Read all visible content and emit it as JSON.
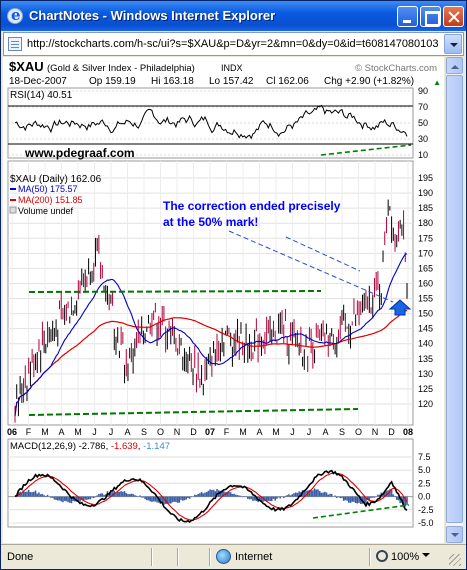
{
  "window": {
    "title": "ChartNotes - Windows Internet Explorer",
    "url": "http://stockcharts.com/h-sc/ui?s=$XAU&p=D&yr=2&mn=0&dy=0&id=t608147080103"
  },
  "chart": {
    "symbol": "$XAU",
    "name": "(Gold & Silver Index - Philadelphia)",
    "exchange": "INDX",
    "copyright": "© StockCharts.com",
    "quote": {
      "date": "18-Dec-2007",
      "op": "Op 159.19",
      "hi": "Hi 163.18",
      "lo": "Lo 157.42",
      "cl": "Cl 162.06",
      "chg": "Chg +2.90 (+1.82%)",
      "chg_arrow": "▲"
    },
    "watermark": "www.pdegraaf.com",
    "rsi": {
      "label": "RSI(14)",
      "value": "40.51",
      "ticks": [
        "90",
        "70",
        "50",
        "30",
        "10"
      ]
    },
    "price": {
      "legend": {
        "title": "$XAU (Daily) 162.06",
        "ma50": "MA(50) 175.57",
        "ma200": "MA(200) 151.85",
        "volume": "Volume undef"
      },
      "annotation": [
        "The correction ended precisely",
        "at the 50% mark!"
      ],
      "ticks": [
        "195",
        "190",
        "185",
        "180",
        "175",
        "170",
        "165",
        "160",
        "155",
        "150",
        "145",
        "140",
        "135",
        "130",
        "125",
        "120"
      ]
    },
    "x_axis": [
      "06",
      "F",
      "M",
      "A",
      "M",
      "J",
      "J",
      "A",
      "S",
      "O",
      "N",
      "D",
      "07",
      "F",
      "M",
      "A",
      "M",
      "J",
      "J",
      "A",
      "S",
      "O",
      "N",
      "D",
      "08"
    ],
    "macd": {
      "label": "MACD(12,26,9)",
      "v1": "-2.786",
      "v2": "-1.639",
      "v3": "-1.147",
      "ticks": [
        "7.5",
        "5.0",
        "2.5",
        "0.0",
        "-2.5",
        "-5.0"
      ]
    },
    "colors": {
      "ma50": "#0000c8",
      "ma200": "#e00000",
      "support": "#007800",
      "annotation": "#0000ff",
      "up": "#000000",
      "down": "#b0003a",
      "macd": "#000000",
      "signal": "#e00000",
      "hist": "#3a5fa8",
      "green": "#008000"
    }
  },
  "status": {
    "left": "Done",
    "zone": "Internet",
    "zoom": "100%"
  }
}
